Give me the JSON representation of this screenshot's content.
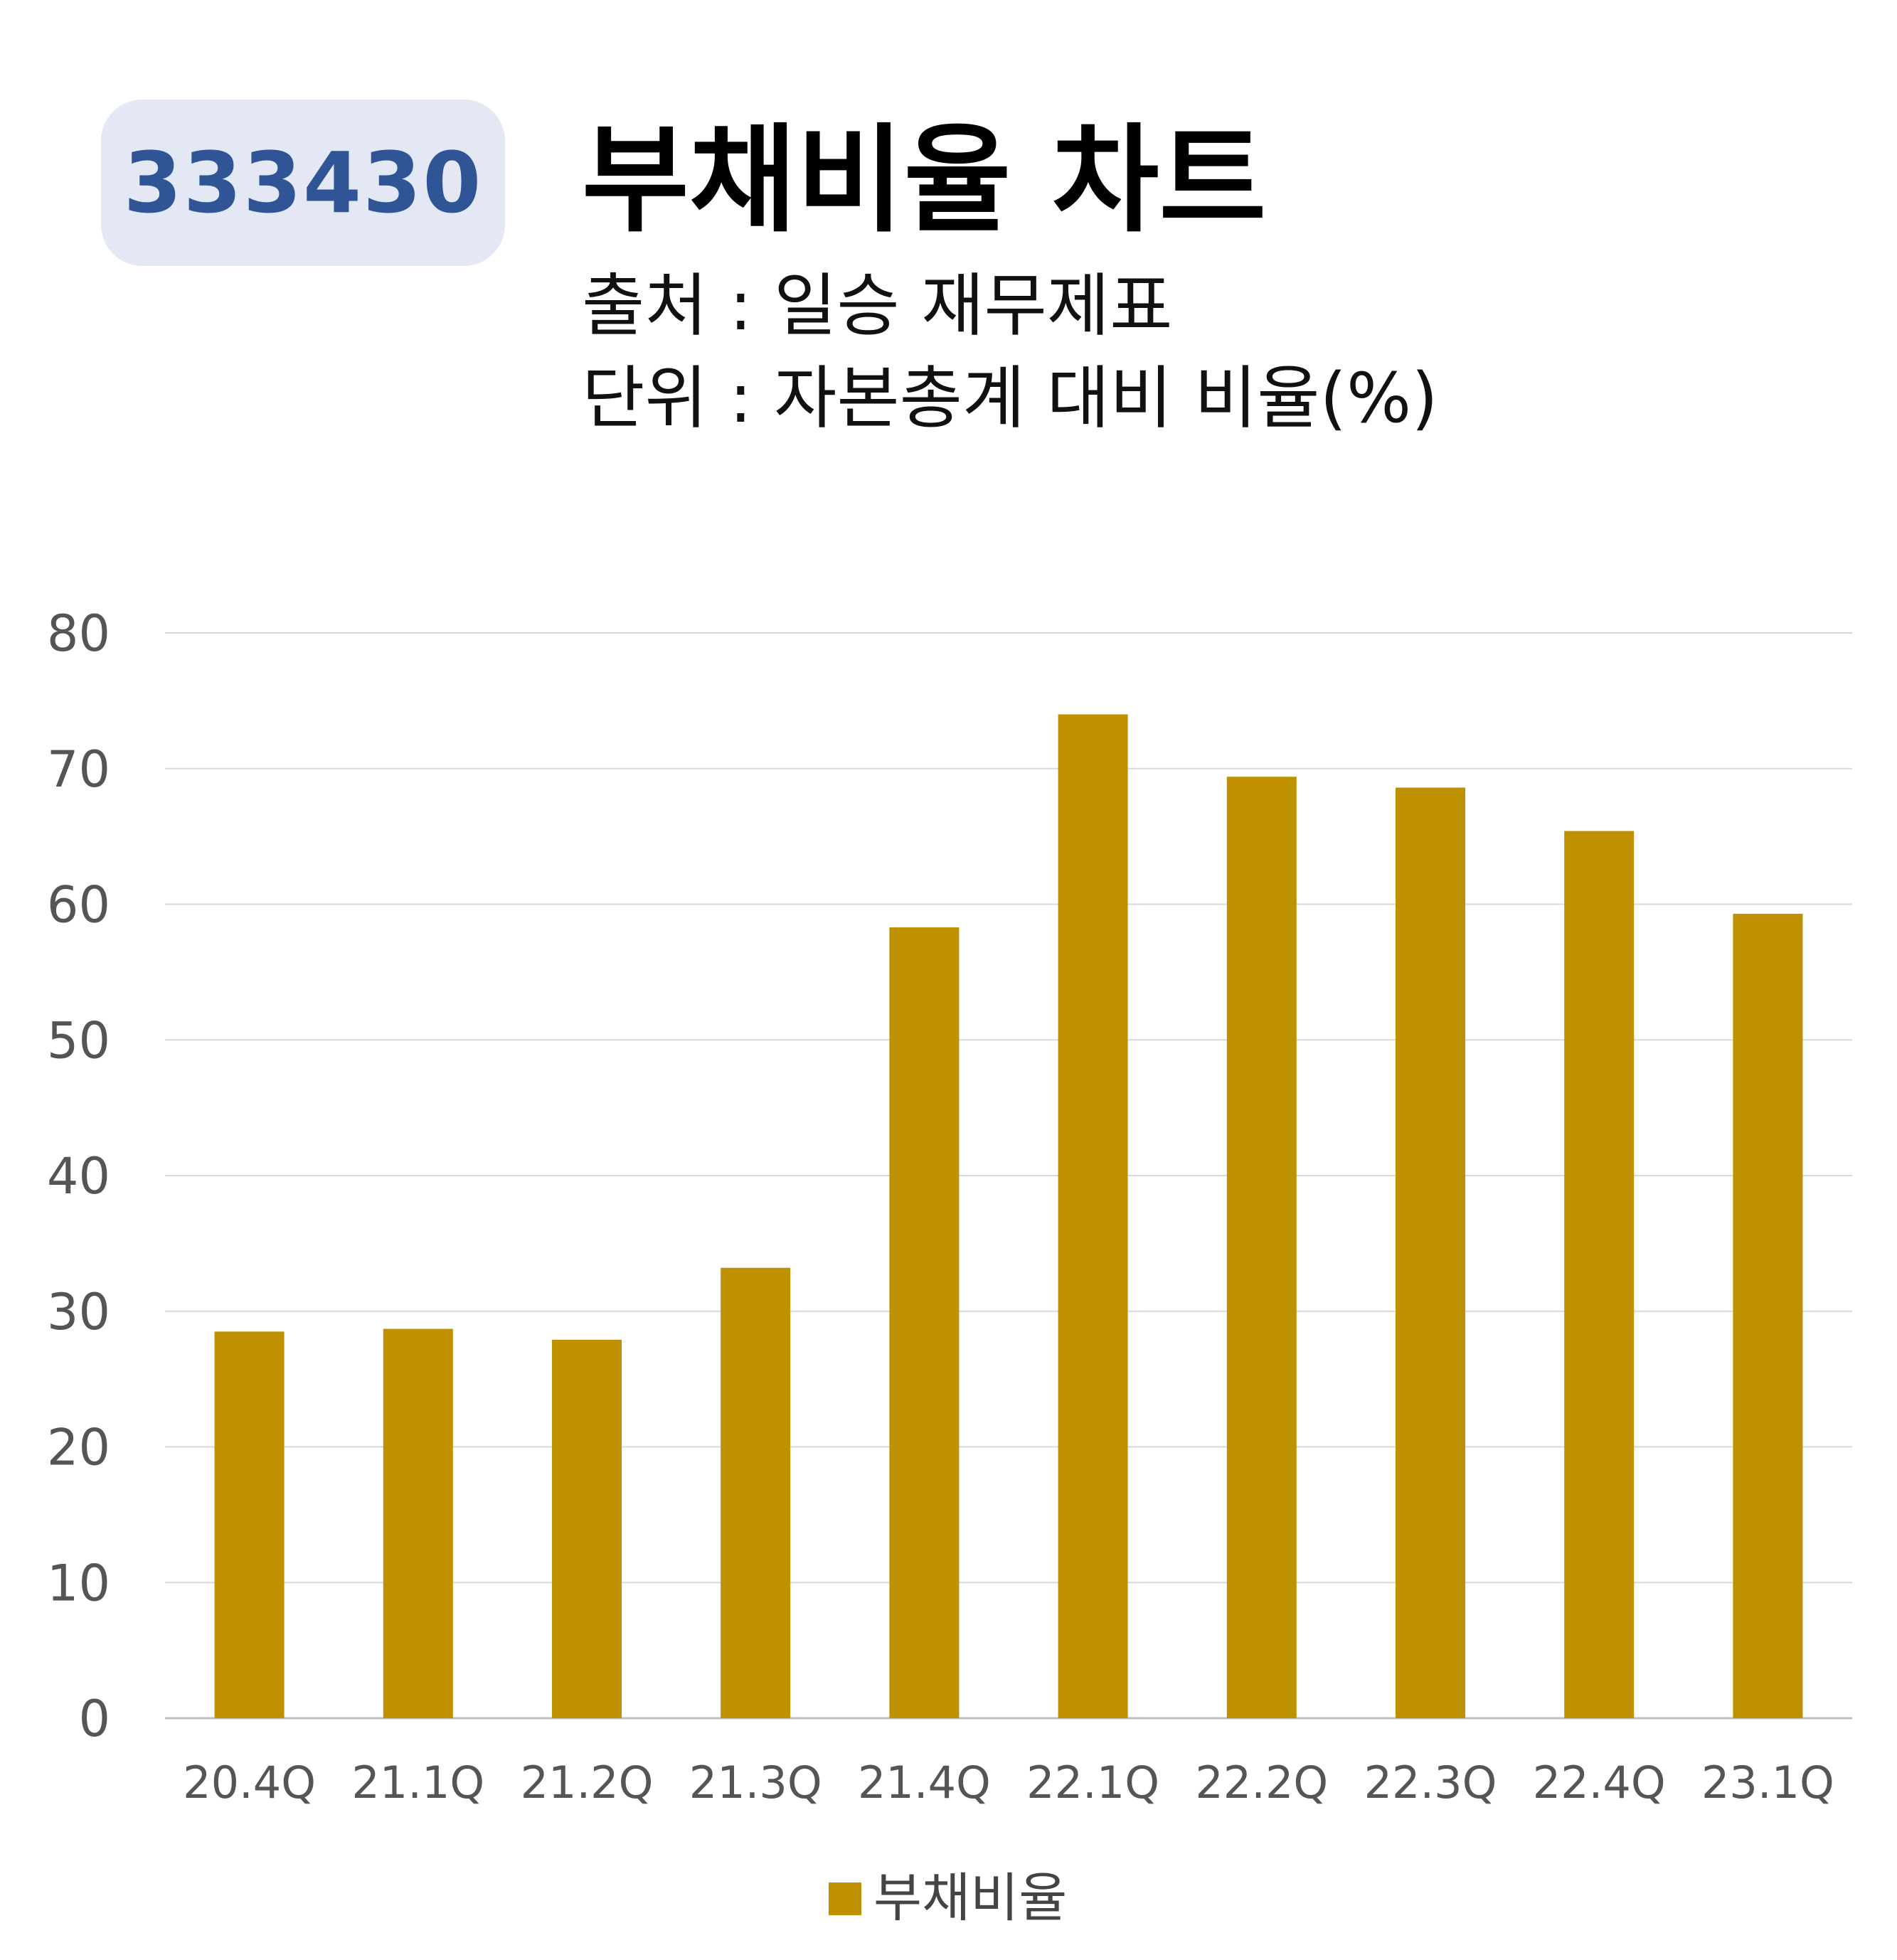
{
  "header": {
    "ticker": "333430",
    "title": "부채비율 차트",
    "source": "출처 : 일승 재무제표",
    "unit": "단위 : 자본총계 대비 비율(%)"
  },
  "colors": {
    "bar": "#bf9000",
    "ticker_text": "#2f5597",
    "ticker_bg": "#e3e8f4",
    "gridline": "#d9d9d9"
  },
  "chart_data": {
    "type": "bar",
    "categories": [
      "20.4Q",
      "21.1Q",
      "21.2Q",
      "21.3Q",
      "21.4Q",
      "22.1Q",
      "22.2Q",
      "22.3Q",
      "22.4Q",
      "23.1Q"
    ],
    "series": [
      {
        "name": "부채비율",
        "values": [
          28.5,
          28.7,
          27.9,
          33.2,
          58.3,
          74.0,
          69.4,
          68.6,
          65.4,
          59.3
        ]
      }
    ],
    "yticks": [
      "0",
      "10",
      "20",
      "30",
      "40",
      "50",
      "60",
      "70",
      "80"
    ],
    "ylim": [
      0,
      80
    ],
    "grid": true,
    "legend": "bottom-center"
  }
}
